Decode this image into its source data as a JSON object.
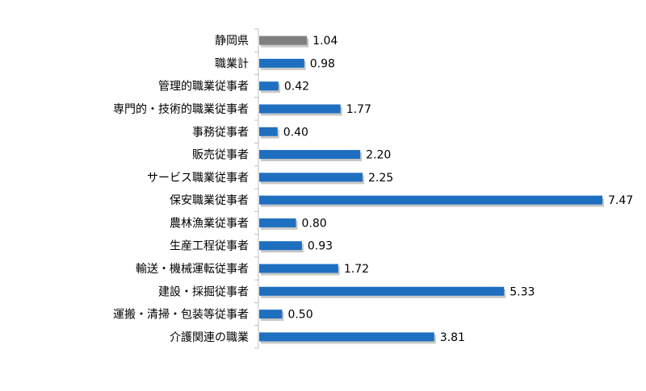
{
  "chart_data": {
    "type": "bar",
    "orientation": "horizontal",
    "categories": [
      "静岡県",
      "職業計",
      "管理的職業従事者",
      "専門的・技術的職業従事者",
      "事務従事者",
      "販売従事者",
      "サービス職業従事者",
      "保安職業従事者",
      "農林漁業従事者",
      "生産工程従事者",
      "輸送・機械運転従事者",
      "建設・採掘従事者",
      "運搬・清掃・包装等従事者",
      "介護関連の職業"
    ],
    "values": [
      1.04,
      0.98,
      0.42,
      1.77,
      0.4,
      2.2,
      2.25,
      7.47,
      0.8,
      0.93,
      1.72,
      5.33,
      0.5,
      3.81
    ],
    "value_labels": [
      "1.04",
      "0.98",
      "0.42",
      "1.77",
      "0.40",
      "2.20",
      "2.25",
      "7.47",
      "0.80",
      "0.93",
      "1.72",
      "5.33",
      "0.50",
      "3.81"
    ],
    "xlim": [
      0,
      7.47
    ],
    "grid": false,
    "legend": "none",
    "colors": {
      "highlight": "#7f7f7f",
      "bar": "#1f6fc0",
      "axis": "#bfbfbf",
      "shadow": "#c8c8c8",
      "text": "#000000"
    },
    "highlight_category": "静岡県"
  }
}
